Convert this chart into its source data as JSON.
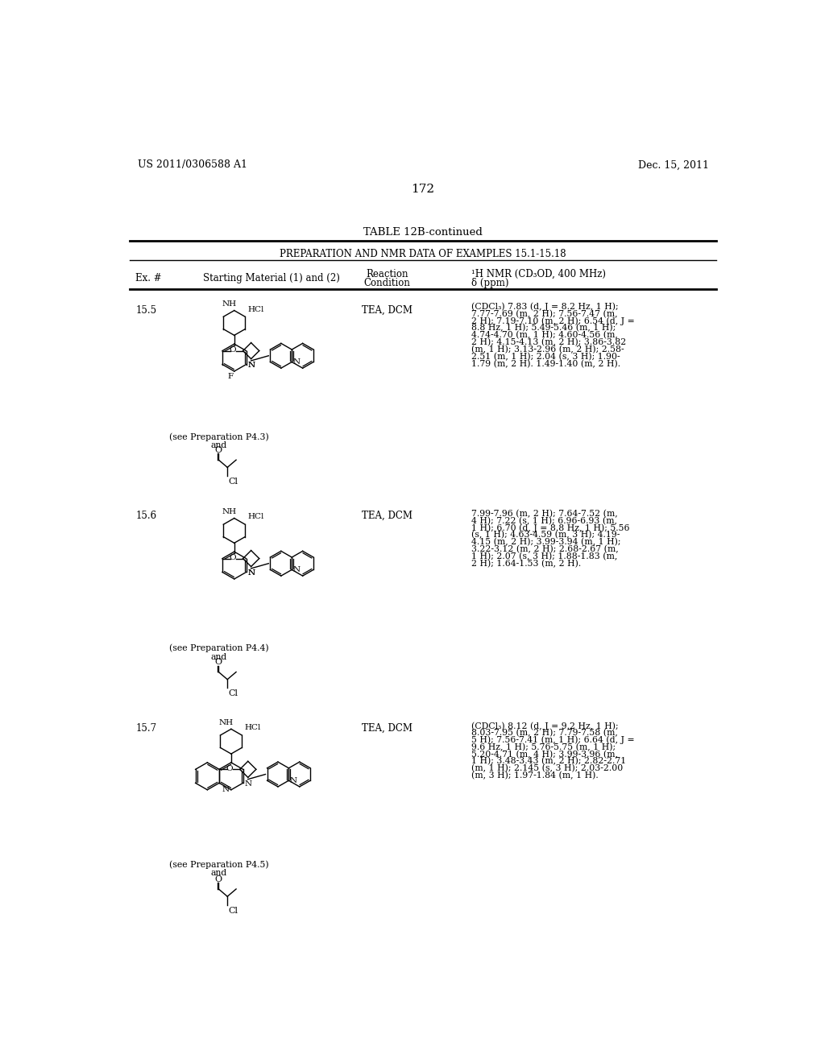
{
  "page_number": "172",
  "patent_left": "US 2011/0306588 A1",
  "patent_right": "Dec. 15, 2011",
  "table_title": "TABLE 12B-continued",
  "table_subtitle": "PREPARATION AND NMR DATA OF EXAMPLES 15.1-15.18",
  "col_ex": "Ex. #",
  "col_starting": "Starting Material (1) and (2)",
  "col_reaction": "Reaction",
  "col_condition": "Condition",
  "col_nmr1": "¹H NMR (CD₃OD, 400 MHz)",
  "col_nmr2": "δ (ppm)",
  "rows": [
    {
      "ex": "15.5",
      "reaction": "TEA, DCM",
      "prep_note": "(see Preparation P4.3)",
      "nmr_lines": [
        "(CDCl₃) 7.83 (d, J = 8.2 Hz, 1 H);",
        "7.77-7.69 (m, 2 H); 7.56-7.47 (m,",
        "2 H); 7.19-7.10 (m, 2 H); 6.54 (d, J =",
        "8.8 Hz, 1 H); 5.49-5.46 (m, 1 H);",
        "4.74-4.70 (m, 1 H); 4.60-4.56 (m,",
        "2 H); 4.15-4.13 (m, 2 H); 3.86-3.82",
        "(m, 1 H); 3.13-2.96 (m, 2 H); 2.58-",
        "2.51 (m, 1 H); 2.04 (s, 3 H); 1.90-",
        "1.79 (m, 2 H). 1.49-1.40 (m, 2 H)."
      ]
    },
    {
      "ex": "15.6",
      "reaction": "TEA, DCM",
      "prep_note": "(see Preparation P4.4)",
      "nmr_lines": [
        "7.99-7.96 (m, 2 H); 7.64-7.52 (m,",
        "4 H); 7.22 (s, 1 H); 6.96-6.93 (m,",
        "1 H); 6.70 (d, J = 8.8 Hz, 1 H); 5.56",
        "(s, 1 H); 4.63-4.59 (m, 3 H); 4.19-",
        "4.15 (m, 2 H); 3.99-3.94 (m, 1 H);",
        "3.22-3.12 (m, 2 H); 2.68-2.67 (m,",
        "1 H); 2.07 (s, 3 H); 1.88-1.83 (m,",
        "2 H); 1.64-1.53 (m, 2 H)."
      ]
    },
    {
      "ex": "15.7",
      "reaction": "TEA, DCM",
      "prep_note": "(see Preparation P4.5)",
      "nmr_lines": [
        "(CDCl₃) 8.12 (d, J = 9.2 Hz, 1 H);",
        "8.03-7.95 (m, 2 H); 7.79-7.58 (m,",
        "5 H); 7.56-7.41 (m, 1 H); 6.64 (d, J =",
        "9.6 Hz, 1 H); 5.76-5.75 (m, 1 H);",
        "5.20-4.71 (m, 4 H); 3.99-3.96 (m,",
        "1 H); 3.48-3.43 (m, 2 H); 2.82-2.71",
        "(m, 1 H); 2.145 (s, 3 H); 2.03-2.00",
        "(m, 3 H); 1.97-1.84 (m, 1 H)."
      ]
    }
  ],
  "background_color": "#ffffff",
  "text_color": "#000000"
}
